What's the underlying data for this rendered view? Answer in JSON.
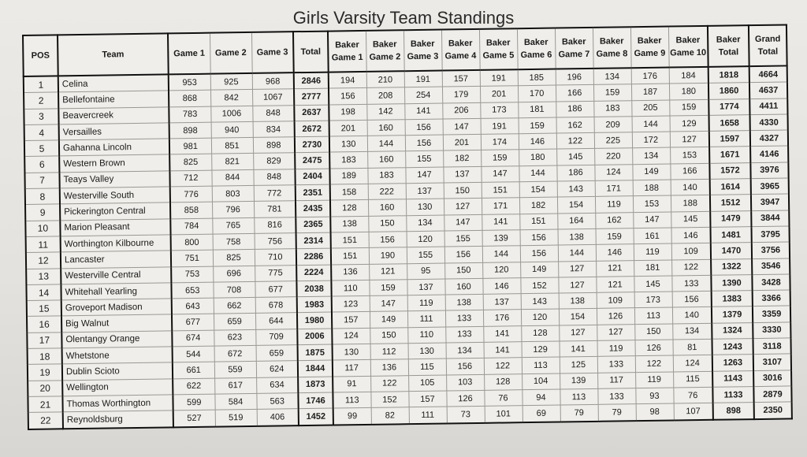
{
  "title": "Girls Varsity Team Standings",
  "columns": [
    "POS",
    "Team",
    "Game 1",
    "Game 2",
    "Game 3",
    "Total",
    "Baker Game 1",
    "Baker Game 2",
    "Baker Game 3",
    "Baker Game 4",
    "Baker Game 5",
    "Baker Game 6",
    "Baker Game 7",
    "Baker Game 8",
    "Baker Game 9",
    "Baker Game 10",
    "Baker Total",
    "Grand Total"
  ],
  "rows": [
    [
      "1",
      "Celina",
      "953",
      "925",
      "968",
      "2846",
      "194",
      "210",
      "191",
      "157",
      "191",
      "185",
      "196",
      "134",
      "176",
      "184",
      "1818",
      "4664"
    ],
    [
      "2",
      "Bellefontaine",
      "868",
      "842",
      "1067",
      "2777",
      "156",
      "208",
      "254",
      "179",
      "201",
      "170",
      "166",
      "159",
      "187",
      "180",
      "1860",
      "4637"
    ],
    [
      "3",
      "Beavercreek",
      "783",
      "1006",
      "848",
      "2637",
      "198",
      "142",
      "141",
      "206",
      "173",
      "181",
      "186",
      "183",
      "205",
      "159",
      "1774",
      "4411"
    ],
    [
      "4",
      "Versailles",
      "898",
      "940",
      "834",
      "2672",
      "201",
      "160",
      "156",
      "147",
      "191",
      "159",
      "162",
      "209",
      "144",
      "129",
      "1658",
      "4330"
    ],
    [
      "5",
      "Gahanna Lincoln",
      "981",
      "851",
      "898",
      "2730",
      "130",
      "144",
      "156",
      "201",
      "174",
      "146",
      "122",
      "225",
      "172",
      "127",
      "1597",
      "4327"
    ],
    [
      "6",
      "Western Brown",
      "825",
      "821",
      "829",
      "2475",
      "183",
      "160",
      "155",
      "182",
      "159",
      "180",
      "145",
      "220",
      "134",
      "153",
      "1671",
      "4146"
    ],
    [
      "7",
      "Teays Valley",
      "712",
      "844",
      "848",
      "2404",
      "189",
      "183",
      "147",
      "137",
      "147",
      "144",
      "186",
      "124",
      "149",
      "166",
      "1572",
      "3976"
    ],
    [
      "8",
      "Westerville South",
      "776",
      "803",
      "772",
      "2351",
      "158",
      "222",
      "137",
      "150",
      "151",
      "154",
      "143",
      "171",
      "188",
      "140",
      "1614",
      "3965"
    ],
    [
      "9",
      "Pickerington Central",
      "858",
      "796",
      "781",
      "2435",
      "128",
      "160",
      "130",
      "127",
      "171",
      "182",
      "154",
      "119",
      "153",
      "188",
      "1512",
      "3947"
    ],
    [
      "10",
      "Marion Pleasant",
      "784",
      "765",
      "816",
      "2365",
      "138",
      "150",
      "134",
      "147",
      "141",
      "151",
      "164",
      "162",
      "147",
      "145",
      "1479",
      "3844"
    ],
    [
      "11",
      "Worthington Kilbourne",
      "800",
      "758",
      "756",
      "2314",
      "151",
      "156",
      "120",
      "155",
      "139",
      "156",
      "138",
      "159",
      "161",
      "146",
      "1481",
      "3795"
    ],
    [
      "12",
      "Lancaster",
      "751",
      "825",
      "710",
      "2286",
      "151",
      "190",
      "155",
      "156",
      "144",
      "156",
      "144",
      "146",
      "119",
      "109",
      "1470",
      "3756"
    ],
    [
      "13",
      "Westerville Central",
      "753",
      "696",
      "775",
      "2224",
      "136",
      "121",
      "95",
      "150",
      "120",
      "149",
      "127",
      "121",
      "181",
      "122",
      "1322",
      "3546"
    ],
    [
      "14",
      "Whitehall Yearling",
      "653",
      "708",
      "677",
      "2038",
      "110",
      "159",
      "137",
      "160",
      "146",
      "152",
      "127",
      "121",
      "145",
      "133",
      "1390",
      "3428"
    ],
    [
      "15",
      "Groveport Madison",
      "643",
      "662",
      "678",
      "1983",
      "123",
      "147",
      "119",
      "138",
      "137",
      "143",
      "138",
      "109",
      "173",
      "156",
      "1383",
      "3366"
    ],
    [
      "16",
      "Big Walnut",
      "677",
      "659",
      "644",
      "1980",
      "157",
      "149",
      "111",
      "133",
      "176",
      "120",
      "154",
      "126",
      "113",
      "140",
      "1379",
      "3359"
    ],
    [
      "17",
      "Olentangy Orange",
      "674",
      "623",
      "709",
      "2006",
      "124",
      "150",
      "110",
      "133",
      "141",
      "128",
      "127",
      "127",
      "150",
      "134",
      "1324",
      "3330"
    ],
    [
      "18",
      "Whetstone",
      "544",
      "672",
      "659",
      "1875",
      "130",
      "112",
      "130",
      "134",
      "141",
      "129",
      "141",
      "119",
      "126",
      "81",
      "1243",
      "3118"
    ],
    [
      "19",
      "Dublin Scioto",
      "661",
      "559",
      "624",
      "1844",
      "117",
      "136",
      "115",
      "156",
      "122",
      "113",
      "125",
      "133",
      "122",
      "124",
      "1263",
      "3107"
    ],
    [
      "20",
      "Wellington",
      "622",
      "617",
      "634",
      "1873",
      "91",
      "122",
      "105",
      "103",
      "128",
      "104",
      "139",
      "117",
      "119",
      "115",
      "1143",
      "3016"
    ],
    [
      "21",
      "Thomas Worthington",
      "599",
      "584",
      "563",
      "1746",
      "113",
      "152",
      "157",
      "126",
      "76",
      "94",
      "113",
      "133",
      "93",
      "76",
      "1133",
      "2879"
    ],
    [
      "22",
      "Reynoldsburg",
      "527",
      "519",
      "406",
      "1452",
      "99",
      "82",
      "111",
      "73",
      "101",
      "69",
      "79",
      "79",
      "98",
      "107",
      "898",
      "2350"
    ]
  ]
}
